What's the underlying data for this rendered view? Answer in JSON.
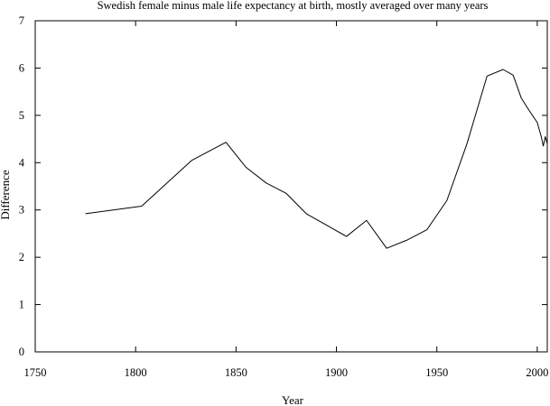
{
  "chart_data": {
    "type": "line",
    "title": "Swedish female minus male life expectancy at birth, mostly averaged over many years",
    "xlabel": "Year",
    "ylabel": "Difference",
    "xlim": [
      1750,
      2005
    ],
    "ylim": [
      0,
      7
    ],
    "xticks": [
      1750,
      1800,
      1850,
      1900,
      1950,
      2000
    ],
    "yticks": [
      0,
      1,
      2,
      3,
      4,
      5,
      6,
      7
    ],
    "grid": false,
    "legend": "none",
    "series": [
      {
        "x": [
          1775,
          1803,
          1828,
          1845,
          1855,
          1865,
          1875,
          1885,
          1895,
          1905,
          1915,
          1925,
          1935,
          1945,
          1955,
          1965,
          1975,
          1983,
          1988,
          1992,
          1996,
          2000,
          2002,
          2003,
          2004,
          2005
        ],
        "y": [
          2.92,
          3.08,
          4.05,
          4.43,
          3.9,
          3.57,
          3.35,
          2.92,
          2.68,
          2.44,
          2.78,
          2.19,
          2.36,
          2.58,
          3.2,
          4.4,
          5.83,
          5.97,
          5.85,
          5.37,
          5.1,
          4.85,
          4.55,
          4.35,
          4.55,
          4.4
        ]
      }
    ]
  }
}
